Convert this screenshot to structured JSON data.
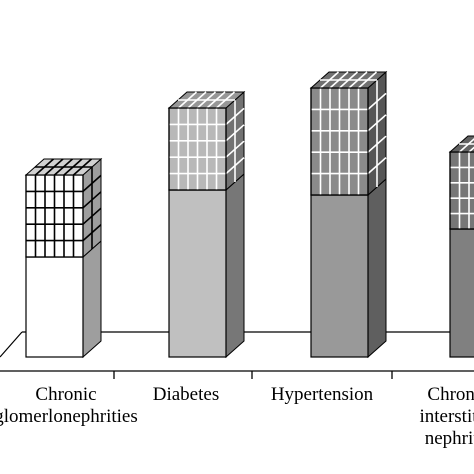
{
  "chart_data": {
    "type": "bar",
    "stacked": true,
    "three_d": true,
    "title": "",
    "xlabel": "",
    "ylabel": "",
    "grid": false,
    "legend": "none",
    "categories": [
      [
        "Chronic",
        "glomerlonephrities"
      ],
      [
        "Diabetes"
      ],
      [
        "Hypertension"
      ],
      [
        "Chronic",
        "interstitial",
        "nephritis"
      ]
    ],
    "series": [
      {
        "pattern": "solid",
        "values": [
          100,
          167,
          162,
          128
        ],
        "front_colors": [
          "#ffffff",
          "#c0c0c0",
          "#999999",
          "#808080"
        ]
      },
      {
        "pattern": "grid",
        "values": [
          82,
          82,
          107,
          77
        ],
        "front_colors": [
          "#ffffff",
          "#b8b8b8",
          "#8a8a8a",
          "#777777"
        ]
      }
    ],
    "colors": {
      "outline": "#000000",
      "floor": "#ffffff",
      "grid_line": "#ffffff"
    }
  }
}
